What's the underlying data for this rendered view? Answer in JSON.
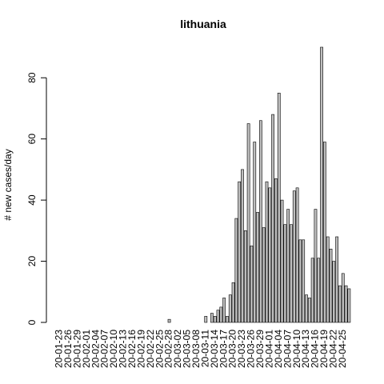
{
  "chart_data": {
    "type": "bar",
    "title": "lithuania",
    "ylabel": "# new cases/day",
    "categories": [
      "20-01-23",
      null,
      null,
      "20-01-26",
      null,
      null,
      "20-01-29",
      null,
      null,
      "20-02-01",
      null,
      null,
      "20-02-04",
      null,
      null,
      "20-02-07",
      null,
      null,
      "20-02-10",
      null,
      null,
      "20-02-13",
      null,
      null,
      "20-02-16",
      null,
      null,
      "20-02-19",
      null,
      null,
      "20-02-22",
      null,
      null,
      "20-02-25",
      null,
      null,
      "20-02-28",
      null,
      null,
      "20-03-02",
      null,
      null,
      "20-03-05",
      null,
      null,
      "20-03-08",
      null,
      null,
      "20-03-11",
      null,
      null,
      "20-03-14",
      null,
      null,
      "20-03-17",
      null,
      null,
      "20-03-20",
      null,
      null,
      "20-03-23",
      null,
      null,
      "20-03-26",
      null,
      null,
      "20-03-29",
      null,
      null,
      "20-04-01",
      null,
      null,
      "20-04-04",
      null,
      null,
      "20-04-07",
      null,
      null,
      "20-04-10",
      null,
      null,
      "20-04-13",
      null,
      null,
      "20-04-16",
      null,
      null,
      "20-04-19",
      null,
      null,
      "20-04-22",
      null,
      null,
      "20-04-25",
      null,
      null
    ],
    "values": [
      0,
      0,
      0,
      0,
      0,
      0,
      0,
      0,
      0,
      0,
      0,
      0,
      0,
      0,
      0,
      0,
      0,
      0,
      0,
      0,
      0,
      0,
      0,
      0,
      0,
      0,
      0,
      0,
      0,
      0,
      0,
      0,
      0,
      0,
      0,
      0,
      1,
      0,
      0,
      0,
      0,
      0,
      0,
      0,
      0,
      0,
      0,
      0,
      2,
      0,
      3,
      2,
      4,
      5,
      8,
      2,
      9,
      13,
      34,
      46,
      50,
      30,
      65,
      25,
      59,
      36,
      66,
      31,
      46,
      44,
      68,
      47,
      75,
      40,
      32,
      37,
      32,
      43,
      44,
      27,
      27,
      9,
      8,
      21,
      37,
      21,
      90,
      59,
      28,
      24,
      20,
      28,
      12,
      16,
      12,
      11
    ],
    "color": "#bebebe",
    "ylim": [
      0,
      90
    ],
    "yticks": [
      0,
      20,
      40,
      60,
      80
    ]
  }
}
